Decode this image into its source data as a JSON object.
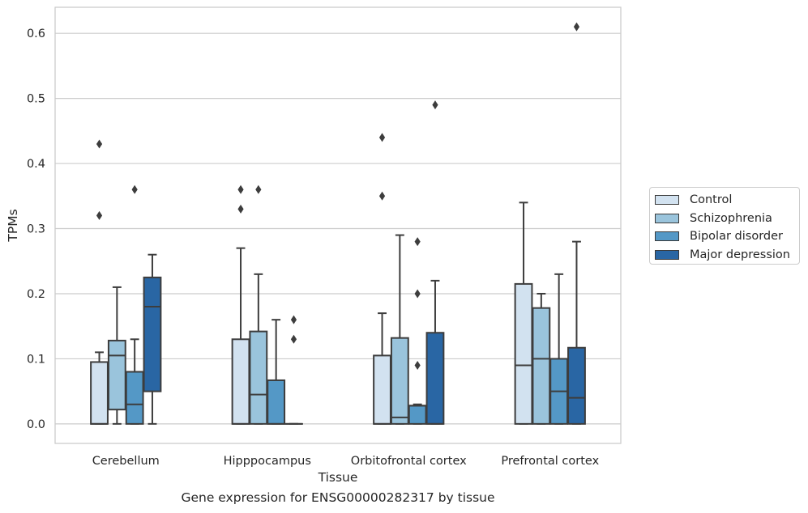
{
  "chart_data": {
    "type": "box",
    "xlabel": "Tissue",
    "ylabel": "TPMs",
    "ylim": [
      -0.03,
      0.64
    ],
    "yticks": [
      0.0,
      0.1,
      0.2,
      0.3,
      0.4,
      0.5,
      0.6
    ],
    "ytick_labels": [
      "0.0",
      "0.1",
      "0.2",
      "0.3",
      "0.4",
      "0.5",
      "0.6"
    ],
    "grid": true,
    "legend_position": "right",
    "categories": [
      "Cerebellum",
      "Hipppocampus",
      "Orbitofrontal cortex",
      "Prefrontal cortex"
    ],
    "series": [
      {
        "name": "Control",
        "color": "#d2e2f0",
        "boxes": [
          {
            "q1": 0.0,
            "median": 0.0,
            "q3": 0.095,
            "whisker_low": 0.0,
            "whisker_high": 0.11,
            "outliers": [
              0.32,
              0.43
            ]
          },
          {
            "q1": 0.0,
            "median": 0.0,
            "q3": 0.13,
            "whisker_low": 0.0,
            "whisker_high": 0.27,
            "outliers": [
              0.33,
              0.36
            ]
          },
          {
            "q1": 0.0,
            "median": 0.0,
            "q3": 0.105,
            "whisker_low": 0.0,
            "whisker_high": 0.17,
            "outliers": [
              0.35,
              0.44
            ]
          },
          {
            "q1": 0.0,
            "median": 0.09,
            "q3": 0.215,
            "whisker_low": 0.0,
            "whisker_high": 0.34,
            "outliers": []
          }
        ]
      },
      {
        "name": "Schizophrenia",
        "color": "#9ac4dc",
        "boxes": [
          {
            "q1": 0.022,
            "median": 0.105,
            "q3": 0.128,
            "whisker_low": 0.0,
            "whisker_high": 0.21,
            "outliers": []
          },
          {
            "q1": 0.0,
            "median": 0.045,
            "q3": 0.142,
            "whisker_low": 0.0,
            "whisker_high": 0.23,
            "outliers": [
              0.36
            ]
          },
          {
            "q1": 0.0,
            "median": 0.01,
            "q3": 0.132,
            "whisker_low": 0.0,
            "whisker_high": 0.29,
            "outliers": []
          },
          {
            "q1": 0.0,
            "median": 0.1,
            "q3": 0.178,
            "whisker_low": 0.0,
            "whisker_high": 0.2,
            "outliers": []
          }
        ]
      },
      {
        "name": "Bipolar disorder",
        "color": "#5498c6",
        "boxes": [
          {
            "q1": 0.0,
            "median": 0.03,
            "q3": 0.08,
            "whisker_low": 0.0,
            "whisker_high": 0.13,
            "outliers": [
              0.36
            ]
          },
          {
            "q1": 0.0,
            "median": 0.0,
            "q3": 0.067,
            "whisker_low": 0.0,
            "whisker_high": 0.16,
            "outliers": []
          },
          {
            "q1": 0.0,
            "median": 0.028,
            "q3": 0.028,
            "whisker_low": 0.0,
            "whisker_high": 0.03,
            "outliers": [
              0.09,
              0.2,
              0.28
            ]
          },
          {
            "q1": 0.0,
            "median": 0.05,
            "q3": 0.1,
            "whisker_low": 0.0,
            "whisker_high": 0.23,
            "outliers": []
          }
        ]
      },
      {
        "name": "Major depression",
        "color": "#2966a4",
        "boxes": [
          {
            "q1": 0.05,
            "median": 0.18,
            "q3": 0.225,
            "whisker_low": 0.0,
            "whisker_high": 0.26,
            "outliers": []
          },
          {
            "q1": 0.0,
            "median": 0.0,
            "q3": 0.0,
            "whisker_low": 0.0,
            "whisker_high": 0.0,
            "outliers": [
              0.13,
              0.16
            ]
          },
          {
            "q1": 0.0,
            "median": 0.0,
            "q3": 0.14,
            "whisker_low": 0.0,
            "whisker_high": 0.22,
            "outliers": [
              0.49
            ]
          },
          {
            "q1": 0.0,
            "median": 0.04,
            "q3": 0.117,
            "whisker_low": 0.0,
            "whisker_high": 0.28,
            "outliers": [
              0.61
            ]
          }
        ]
      }
    ]
  },
  "caption": "Gene expression for ENSG00000282317 by tissue"
}
